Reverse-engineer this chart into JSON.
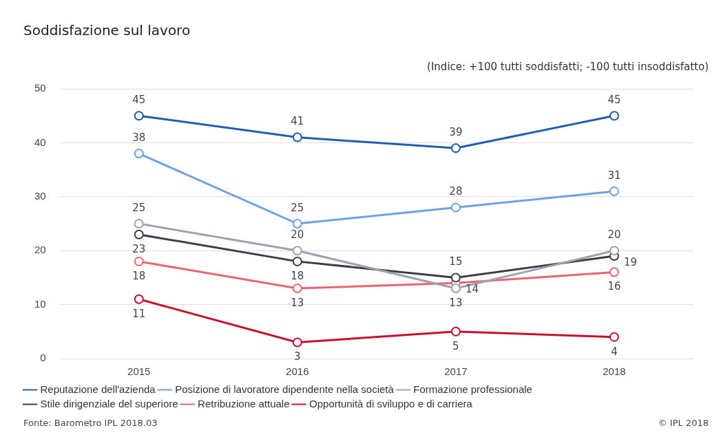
{
  "chart_data": {
    "type": "line",
    "title": "Soddisfazione sul lavoro",
    "subtitle": "(Indice: +100 tutti soddisfatti; -100 tutti insoddisfatto)",
    "categories": [
      "2015",
      "2016",
      "2017",
      "2018"
    ],
    "series": [
      {
        "name": "Reputazione dell'azienda",
        "color": "#1f5fae",
        "values": [
          45,
          41,
          39,
          45
        ]
      },
      {
        "name": "Posizione di lavoratore dipendente nella società",
        "color": "#6fa0e0",
        "values": [
          38,
          25,
          28,
          31
        ]
      },
      {
        "name": "Formazione professionale",
        "color": "#9aa3ad",
        "values": [
          25,
          20,
          13,
          20
        ]
      },
      {
        "name": "Stile dirigenziale del superiore",
        "color": "#3a3f47",
        "values": [
          23,
          18,
          15,
          19
        ]
      },
      {
        "name": "Retribuzione attuale",
        "color": "#e8646e",
        "values": [
          18,
          13,
          14,
          16
        ]
      },
      {
        "name": "Opportunità di sviluppo e di carriera",
        "color": "#c8102e",
        "values": [
          11,
          3,
          5,
          4
        ]
      }
    ],
    "ylim": [
      0,
      50
    ],
    "yticks": [
      0,
      10,
      20,
      30,
      40,
      50
    ],
    "grid": "y",
    "legend": "bottom",
    "marker": "circle",
    "line_style": "solid",
    "data_labels": true,
    "annotations": [
      "Fonte: Barometro IPL 2018.03",
      "© IPL 2018"
    ]
  }
}
